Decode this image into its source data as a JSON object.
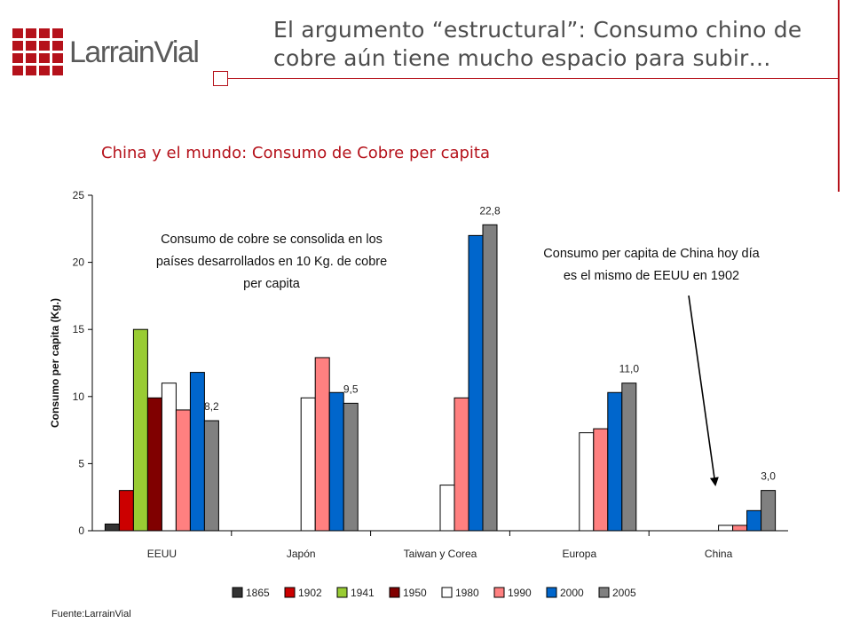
{
  "header": {
    "logo_text": "LarrainVial",
    "title_line1": "El argumento “estructural”: Consumo chino de",
    "title_line2": "cobre aún tiene mucho espacio para subir…"
  },
  "subtitle": "China y el mundo: Consumo de Cobre per capita",
  "footer": "Fuente:LarrainVial",
  "colors": {
    "brand": "#b5121b"
  },
  "chart_data": {
    "type": "bar",
    "title": "China y el mundo: Consumo de Cobre per capita",
    "ylabel": "Consumo per capita (Kg.)",
    "ylim": [
      0,
      25
    ],
    "yticks": [
      0,
      5,
      10,
      15,
      20,
      25
    ],
    "legend_position": "bottom",
    "categories": [
      "EEUU",
      "Japón",
      "Taiwan y Corea",
      "Europa",
      "China"
    ],
    "series": [
      {
        "name": "1865",
        "color": "#333333",
        "values": [
          0.5,
          null,
          null,
          null,
          null
        ]
      },
      {
        "name": "1902",
        "color": "#cc0000",
        "values": [
          3.0,
          null,
          null,
          null,
          null
        ]
      },
      {
        "name": "1941",
        "color": "#99cc33",
        "values": [
          15.0,
          null,
          null,
          null,
          null
        ]
      },
      {
        "name": "1950",
        "color": "#800000",
        "values": [
          9.9,
          null,
          null,
          null,
          null
        ]
      },
      {
        "name": "1980",
        "color": "#ffffff",
        "values": [
          11.0,
          9.9,
          3.4,
          7.3,
          0.4
        ]
      },
      {
        "name": "1990",
        "color": "#ff8080",
        "values": [
          9.0,
          12.9,
          9.9,
          7.6,
          0.4
        ]
      },
      {
        "name": "2000",
        "color": "#0066cc",
        "values": [
          11.8,
          10.3,
          22.0,
          10.3,
          1.5
        ]
      },
      {
        "name": "2005",
        "color": "#808080",
        "values": [
          8.2,
          9.5,
          22.8,
          11.0,
          3.0
        ]
      }
    ],
    "data_labels": [
      "8,2",
      "9,5",
      "22,8",
      "11,0",
      "3,0"
    ],
    "annotations": [
      {
        "lines": [
          "Consumo de cobre se consolida en los",
          "países desarrollados en 10 Kg. de cobre",
          "per capita"
        ]
      },
      {
        "lines": [
          "Consumo per capita de China hoy día",
          "es el mismo de EEUU en 1902"
        ]
      }
    ]
  }
}
